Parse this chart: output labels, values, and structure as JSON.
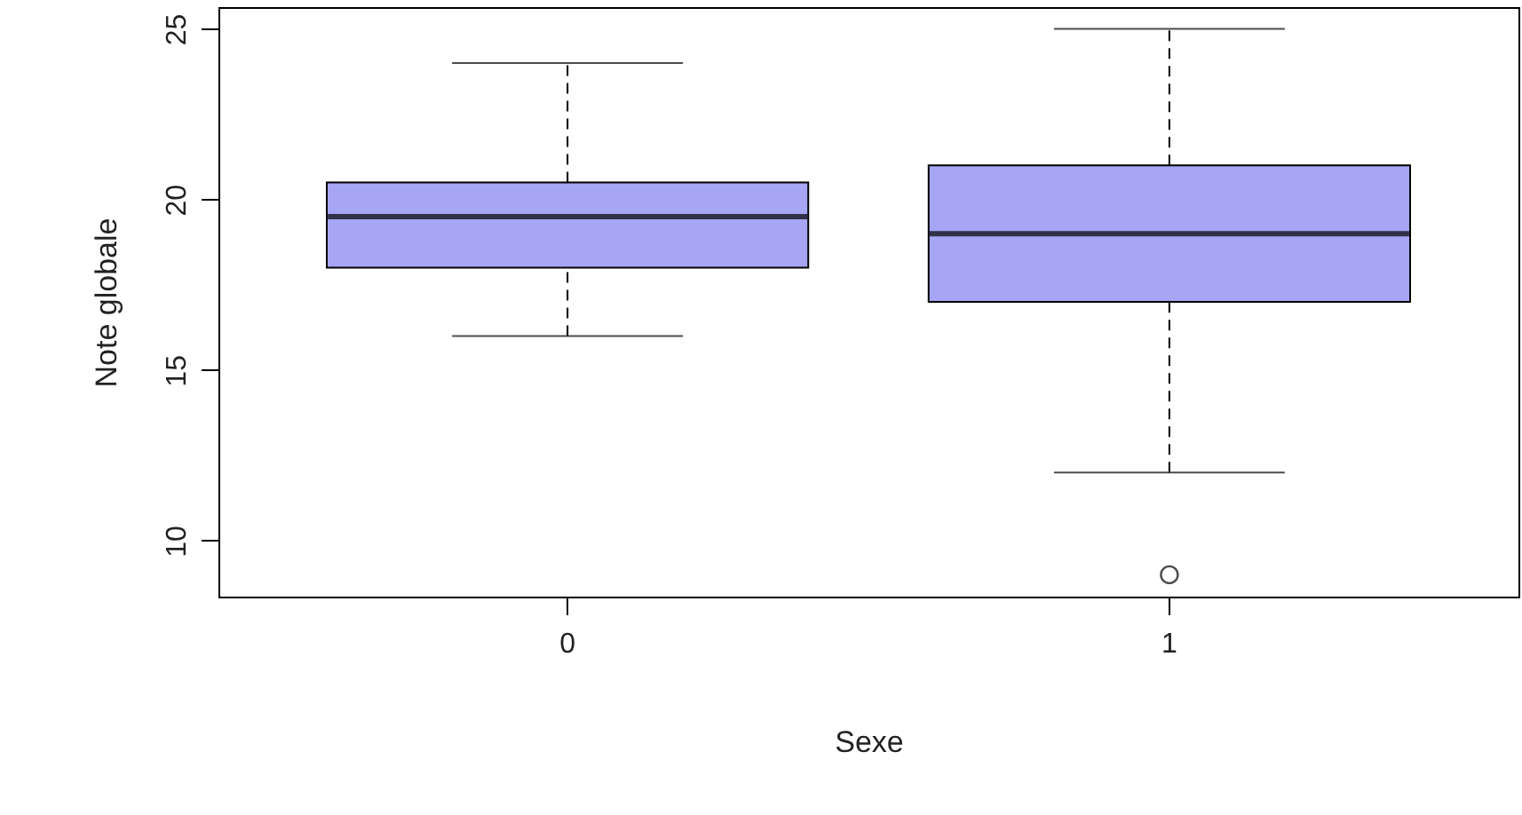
{
  "chart_data": {
    "type": "box",
    "xlabel": "Sexe",
    "ylabel": "Note globale",
    "categories": [
      "0",
      "1"
    ],
    "ylim": [
      8.36,
      25.64
    ],
    "yticks": [
      10,
      15,
      20,
      25
    ],
    "grid": false,
    "line_style": "dashed",
    "series": [
      {
        "color": "#a6a6f5",
        "boxes": [
          {
            "low": 16,
            "q1": 18,
            "median": 19.5,
            "q3": 20.5,
            "high": 24
          },
          {
            "low": 12,
            "q1": 17,
            "median": 19,
            "q3": 21,
            "high": 25,
            "outliers": [
              9
            ]
          }
        ]
      }
    ]
  }
}
